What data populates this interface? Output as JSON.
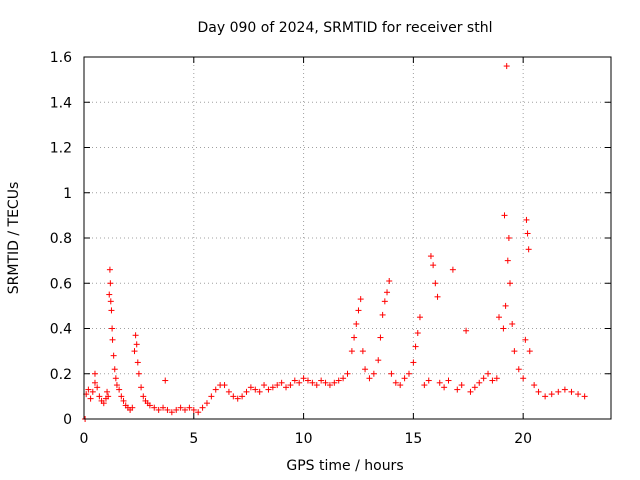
{
  "chart_data": {
    "type": "scatter",
    "title": "Day 090 of 2024, SRMTID for receiver sthl",
    "xlabel": "GPS time / hours",
    "ylabel": "SRMTID / TECUs",
    "xlim": [
      0,
      24
    ],
    "ylim": [
      0,
      1.6
    ],
    "xticks": [
      0,
      5,
      10,
      15,
      20
    ],
    "yticks": [
      0,
      0.2,
      0.4,
      0.6,
      0.8,
      1,
      1.2,
      1.4,
      1.6
    ],
    "xtick_labels": [
      "0",
      "5",
      "10",
      "15",
      "20"
    ],
    "ytick_labels": [
      "0",
      "0.2",
      "0.4",
      "0.6",
      "0.8",
      "1",
      "1.2",
      "1.4",
      "1.6"
    ],
    "grid": true,
    "marker": "+",
    "color": "#ff0000",
    "series": [
      {
        "name": "SRMTID",
        "points": [
          [
            0.05,
            0.0
          ],
          [
            0.1,
            0.11
          ],
          [
            0.2,
            0.13
          ],
          [
            0.3,
            0.09
          ],
          [
            0.4,
            0.12
          ],
          [
            0.5,
            0.16
          ],
          [
            0.5,
            0.2
          ],
          [
            0.6,
            0.14
          ],
          [
            0.7,
            0.1
          ],
          [
            0.8,
            0.08
          ],
          [
            0.9,
            0.07
          ],
          [
            1.0,
            0.09
          ],
          [
            1.05,
            0.12
          ],
          [
            1.1,
            0.1
          ],
          [
            1.15,
            0.55
          ],
          [
            1.18,
            0.66
          ],
          [
            1.2,
            0.6
          ],
          [
            1.22,
            0.52
          ],
          [
            1.25,
            0.48
          ],
          [
            1.28,
            0.4
          ],
          [
            1.3,
            0.35
          ],
          [
            1.35,
            0.28
          ],
          [
            1.4,
            0.22
          ],
          [
            1.45,
            0.18
          ],
          [
            1.5,
            0.15
          ],
          [
            1.6,
            0.13
          ],
          [
            1.7,
            0.1
          ],
          [
            1.8,
            0.08
          ],
          [
            1.9,
            0.06
          ],
          [
            2.0,
            0.05
          ],
          [
            2.1,
            0.04
          ],
          [
            2.2,
            0.05
          ],
          [
            2.3,
            0.3
          ],
          [
            2.35,
            0.37
          ],
          [
            2.4,
            0.33
          ],
          [
            2.45,
            0.25
          ],
          [
            2.5,
            0.2
          ],
          [
            2.6,
            0.14
          ],
          [
            2.7,
            0.1
          ],
          [
            2.8,
            0.08
          ],
          [
            2.9,
            0.07
          ],
          [
            3.0,
            0.06
          ],
          [
            3.2,
            0.05
          ],
          [
            3.4,
            0.04
          ],
          [
            3.6,
            0.05
          ],
          [
            3.8,
            0.04
          ],
          [
            3.7,
            0.17
          ],
          [
            4.0,
            0.03
          ],
          [
            4.2,
            0.04
          ],
          [
            4.4,
            0.05
          ],
          [
            4.6,
            0.04
          ],
          [
            4.8,
            0.05
          ],
          [
            5.0,
            0.04
          ],
          [
            5.2,
            0.03
          ],
          [
            5.4,
            0.05
          ],
          [
            5.6,
            0.07
          ],
          [
            5.8,
            0.1
          ],
          [
            6.0,
            0.13
          ],
          [
            6.2,
            0.15
          ],
          [
            6.4,
            0.15
          ],
          [
            6.6,
            0.12
          ],
          [
            6.8,
            0.1
          ],
          [
            7.0,
            0.09
          ],
          [
            7.2,
            0.1
          ],
          [
            7.4,
            0.12
          ],
          [
            7.6,
            0.14
          ],
          [
            7.8,
            0.13
          ],
          [
            8.0,
            0.12
          ],
          [
            8.2,
            0.15
          ],
          [
            8.4,
            0.13
          ],
          [
            8.6,
            0.14
          ],
          [
            8.8,
            0.15
          ],
          [
            9.0,
            0.16
          ],
          [
            9.2,
            0.14
          ],
          [
            9.4,
            0.15
          ],
          [
            9.6,
            0.17
          ],
          [
            9.8,
            0.16
          ],
          [
            10.0,
            0.18
          ],
          [
            10.2,
            0.17
          ],
          [
            10.4,
            0.16
          ],
          [
            10.6,
            0.15
          ],
          [
            10.8,
            0.17
          ],
          [
            11.0,
            0.16
          ],
          [
            11.2,
            0.15
          ],
          [
            11.4,
            0.16
          ],
          [
            11.6,
            0.17
          ],
          [
            11.8,
            0.18
          ],
          [
            12.0,
            0.2
          ],
          [
            12.2,
            0.3
          ],
          [
            12.3,
            0.36
          ],
          [
            12.4,
            0.42
          ],
          [
            12.5,
            0.48
          ],
          [
            12.6,
            0.53
          ],
          [
            12.7,
            0.3
          ],
          [
            12.8,
            0.22
          ],
          [
            13.0,
            0.18
          ],
          [
            13.2,
            0.2
          ],
          [
            13.4,
            0.26
          ],
          [
            13.5,
            0.36
          ],
          [
            13.6,
            0.46
          ],
          [
            13.7,
            0.52
          ],
          [
            13.8,
            0.56
          ],
          [
            13.9,
            0.61
          ],
          [
            14.0,
            0.2
          ],
          [
            14.2,
            0.16
          ],
          [
            14.4,
            0.15
          ],
          [
            14.6,
            0.18
          ],
          [
            14.8,
            0.2
          ],
          [
            15.0,
            0.25
          ],
          [
            15.1,
            0.32
          ],
          [
            15.2,
            0.38
          ],
          [
            15.3,
            0.45
          ],
          [
            15.5,
            0.15
          ],
          [
            15.7,
            0.17
          ],
          [
            15.8,
            0.72
          ],
          [
            15.9,
            0.68
          ],
          [
            16.0,
            0.6
          ],
          [
            16.1,
            0.54
          ],
          [
            16.2,
            0.16
          ],
          [
            16.4,
            0.14
          ],
          [
            16.6,
            0.17
          ],
          [
            16.8,
            0.66
          ],
          [
            17.0,
            0.13
          ],
          [
            17.2,
            0.15
          ],
          [
            17.4,
            0.39
          ],
          [
            17.6,
            0.12
          ],
          [
            17.8,
            0.14
          ],
          [
            18.0,
            0.16
          ],
          [
            18.2,
            0.18
          ],
          [
            18.4,
            0.2
          ],
          [
            18.6,
            0.17
          ],
          [
            18.8,
            0.18
          ],
          [
            18.9,
            0.45
          ],
          [
            19.1,
            0.4
          ],
          [
            19.15,
            0.9
          ],
          [
            19.2,
            0.5
          ],
          [
            19.25,
            1.56
          ],
          [
            19.3,
            0.7
          ],
          [
            19.35,
            0.8
          ],
          [
            19.4,
            0.6
          ],
          [
            19.5,
            0.42
          ],
          [
            19.6,
            0.3
          ],
          [
            19.8,
            0.22
          ],
          [
            20.0,
            0.18
          ],
          [
            20.1,
            0.35
          ],
          [
            20.15,
            0.88
          ],
          [
            20.2,
            0.82
          ],
          [
            20.25,
            0.75
          ],
          [
            20.3,
            0.3
          ],
          [
            20.5,
            0.15
          ],
          [
            20.7,
            0.12
          ],
          [
            21.0,
            0.1
          ],
          [
            21.3,
            0.11
          ],
          [
            21.6,
            0.12
          ],
          [
            21.9,
            0.13
          ],
          [
            22.2,
            0.12
          ],
          [
            22.5,
            0.11
          ],
          [
            22.8,
            0.1
          ]
        ]
      }
    ]
  }
}
